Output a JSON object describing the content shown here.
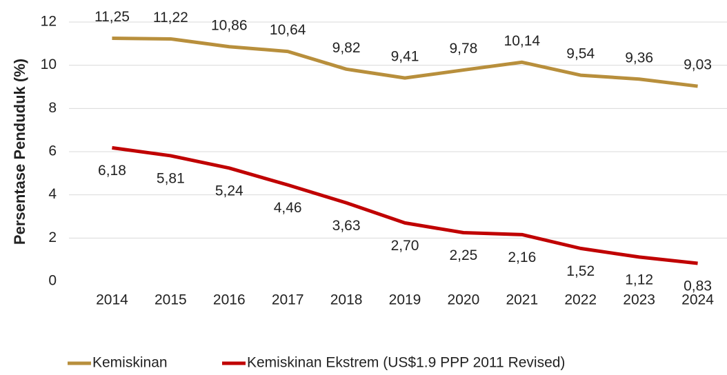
{
  "chart_data": {
    "type": "line",
    "y_label": "Persentase Penduduk (%)",
    "categories": [
      "2014",
      "2015",
      "2016",
      "2017",
      "2018",
      "2019",
      "2020",
      "2021",
      "2022",
      "2023",
      "2024"
    ],
    "series": [
      {
        "name": "Kemiskinan",
        "color": "#b88f3c",
        "values": [
          11.25,
          11.22,
          10.86,
          10.64,
          9.82,
          9.41,
          9.78,
          10.14,
          9.54,
          9.36,
          9.03
        ],
        "value_labels": [
          "11,25",
          "11,22",
          "10,86",
          "10,64",
          "9,82",
          "9,41",
          "9,78",
          "10,14",
          "9,54",
          "9,36",
          "9,03"
        ]
      },
      {
        "name": "Kemiskinan Ekstrem (US$1.9 PPP 2011 Revised)",
        "color": "#c00000",
        "values": [
          6.18,
          5.81,
          5.24,
          4.46,
          3.63,
          2.7,
          2.25,
          2.16,
          1.52,
          1.12,
          0.83
        ],
        "value_labels": [
          "6,18",
          "5,81",
          "5,24",
          "4,46",
          "3,63",
          "2,70",
          "2,25",
          "2,16",
          "1,52",
          "1,12",
          "0,83"
        ]
      }
    ],
    "ylim": [
      0,
      12
    ],
    "yticks": [
      0,
      2,
      4,
      6,
      8,
      10,
      12
    ],
    "grid": true,
    "legend": "bottom"
  }
}
